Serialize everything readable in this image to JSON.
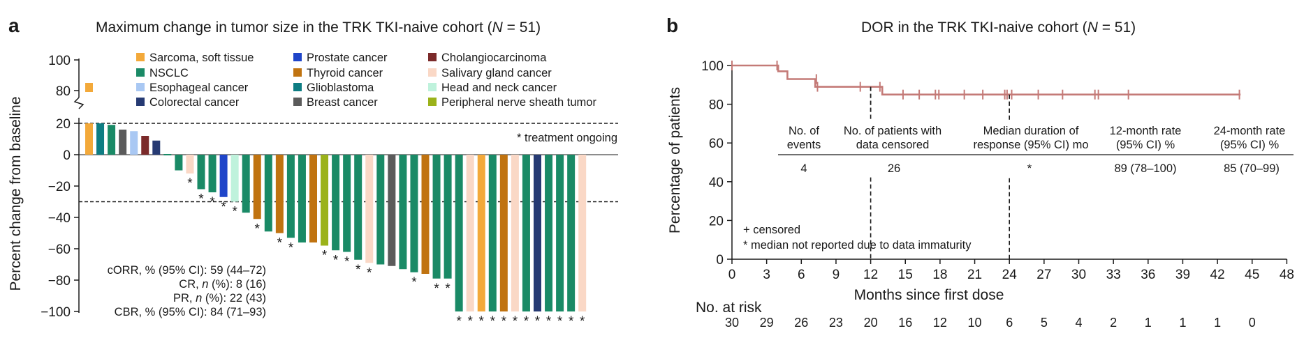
{
  "colors": {
    "sarcoma": "#f3a93a",
    "nsclc": "#1a8a66",
    "esophageal": "#a9c8f3",
    "colorectal": "#263a73",
    "prostate": "#1f45c9",
    "thyroid": "#c07310",
    "glioblastoma": "#0e7d83",
    "breast": "#5b5b5b",
    "cholangio": "#7b2a2a",
    "salivary": "#fad8c6",
    "headneck": "#bff2dc",
    "pnst": "#9bb21a",
    "km_line": "#c47a77"
  },
  "panel_a": {
    "letter": "a",
    "title_pre": "Maximum change in tumor size in the TRK TKI-naive cohort (",
    "title_n": "N",
    "title_post": " = 51)",
    "treatment_note": "* treatment ongoing",
    "star_symbol": "*",
    "stats": [
      {
        "pre": "cORR, % (95% CI): 59 (44–72)",
        "italic": "",
        "post": ""
      },
      {
        "pre": "CR, ",
        "italic": "n",
        "post": " (%): 8 (16)"
      },
      {
        "pre": "PR, ",
        "italic": "n",
        "post": " (%): 22 (43)"
      },
      {
        "pre": "CBR, % (95% CI): 84 (71–93)",
        "italic": "",
        "post": ""
      }
    ]
  },
  "panel_b": {
    "letter": "b",
    "title_pre": "DOR in the TRK TKI-naive cohort (",
    "title_n": "N",
    "title_post": " = 51)",
    "table_headers": [
      [
        "No. of",
        "events"
      ],
      [
        "No. of patients with",
        "data censored"
      ],
      [
        "Median duration of",
        "response (95% CI) mo"
      ],
      [
        "12-month rate",
        "(95% CI) %"
      ],
      [
        "24-month rate",
        "(95% CI) %"
      ]
    ],
    "table_values": [
      "4",
      "26",
      "*",
      "89 (78–100)",
      "85 (70–99)"
    ],
    "footnotes": [
      "+ censored",
      "* median not reported due to data immaturity"
    ],
    "risk_label": "No. at risk",
    "risk_values": [
      "30",
      "29",
      "26",
      "23",
      "20",
      "16",
      "12",
      "10",
      "6",
      "5",
      "4",
      "2",
      "1",
      "1",
      "1",
      "0"
    ]
  },
  "chart_data": [
    {
      "type": "bar",
      "title": "Maximum change in tumor size in the TRK TKI-naive cohort (N = 51)",
      "xlabel": "",
      "ylabel": "Percent change from baseline",
      "ylim": [
        -100,
        100
      ],
      "yticks": [
        "-100",
        "-80",
        "-60",
        "-40",
        "-20",
        "0",
        "20",
        "80",
        "100"
      ],
      "axis_break": "between 20 and 80",
      "reference_lines": [
        20,
        -30
      ],
      "legend": [
        {
          "label": "Sarcoma, soft tissue",
          "key": "sarcoma"
        },
        {
          "label": "NSCLC",
          "key": "nsclc"
        },
        {
          "label": "Esophageal cancer",
          "key": "esophageal"
        },
        {
          "label": "Colorectal cancer",
          "key": "colorectal"
        },
        {
          "label": "Prostate cancer",
          "key": "prostate"
        },
        {
          "label": "Thyroid cancer",
          "key": "thyroid"
        },
        {
          "label": "Glioblastoma",
          "key": "glioblastoma"
        },
        {
          "label": "Breast cancer",
          "key": "breast"
        },
        {
          "label": "Cholangiocarcinoma",
          "key": "cholangio"
        },
        {
          "label": "Salivary gland cancer",
          "key": "salivary"
        },
        {
          "label": "Head and neck cancer",
          "key": "headneck"
        },
        {
          "label": "Peripheral nerve sheath tumor",
          "key": "pnst"
        }
      ],
      "bars": [
        {
          "value": 85,
          "type": "sarcoma",
          "ongoing": false,
          "broken": true
        },
        {
          "value": 20,
          "type": "sarcoma",
          "ongoing": false
        },
        {
          "value": 20,
          "type": "glioblastoma",
          "ongoing": false
        },
        {
          "value": 19,
          "type": "nsclc",
          "ongoing": false
        },
        {
          "value": 16,
          "type": "breast",
          "ongoing": false
        },
        {
          "value": 15,
          "type": "esophageal",
          "ongoing": false
        },
        {
          "value": 12,
          "type": "cholangio",
          "ongoing": false
        },
        {
          "value": 9,
          "type": "colorectal",
          "ongoing": false
        },
        {
          "value": 0,
          "type": "nsclc",
          "ongoing": false
        },
        {
          "value": -10,
          "type": "nsclc",
          "ongoing": false
        },
        {
          "value": -12,
          "type": "salivary",
          "ongoing": true
        },
        {
          "value": -22,
          "type": "nsclc",
          "ongoing": true
        },
        {
          "value": -24,
          "type": "nsclc",
          "ongoing": true
        },
        {
          "value": -27,
          "type": "prostate",
          "ongoing": true
        },
        {
          "value": -30,
          "type": "headneck",
          "ongoing": true
        },
        {
          "value": -37,
          "type": "nsclc",
          "ongoing": false
        },
        {
          "value": -41,
          "type": "thyroid",
          "ongoing": true
        },
        {
          "value": -49,
          "type": "nsclc",
          "ongoing": false
        },
        {
          "value": -50,
          "type": "thyroid",
          "ongoing": true
        },
        {
          "value": -53,
          "type": "nsclc",
          "ongoing": true
        },
        {
          "value": -56,
          "type": "nsclc",
          "ongoing": false
        },
        {
          "value": -56,
          "type": "thyroid",
          "ongoing": false
        },
        {
          "value": -58,
          "type": "pnst",
          "ongoing": true
        },
        {
          "value": -61,
          "type": "nsclc",
          "ongoing": true
        },
        {
          "value": -62,
          "type": "nsclc",
          "ongoing": true
        },
        {
          "value": -67,
          "type": "nsclc",
          "ongoing": true
        },
        {
          "value": -69,
          "type": "salivary",
          "ongoing": true
        },
        {
          "value": -70,
          "type": "nsclc",
          "ongoing": false
        },
        {
          "value": -71,
          "type": "breast",
          "ongoing": false
        },
        {
          "value": -73,
          "type": "nsclc",
          "ongoing": false
        },
        {
          "value": -75,
          "type": "nsclc",
          "ongoing": true
        },
        {
          "value": -76,
          "type": "thyroid",
          "ongoing": false
        },
        {
          "value": -79,
          "type": "nsclc",
          "ongoing": true
        },
        {
          "value": -79,
          "type": "nsclc",
          "ongoing": true
        },
        {
          "value": -100,
          "type": "nsclc",
          "ongoing": true
        },
        {
          "value": -100,
          "type": "salivary",
          "ongoing": true
        },
        {
          "value": -100,
          "type": "sarcoma",
          "ongoing": true
        },
        {
          "value": -100,
          "type": "nsclc",
          "ongoing": true
        },
        {
          "value": -100,
          "type": "thyroid",
          "ongoing": true
        },
        {
          "value": -100,
          "type": "salivary",
          "ongoing": true
        },
        {
          "value": -100,
          "type": "nsclc",
          "ongoing": true
        },
        {
          "value": -100,
          "type": "colorectal",
          "ongoing": true
        },
        {
          "value": -100,
          "type": "nsclc",
          "ongoing": true
        },
        {
          "value": -100,
          "type": "nsclc",
          "ongoing": true
        },
        {
          "value": -100,
          "type": "nsclc",
          "ongoing": true
        },
        {
          "value": -100,
          "type": "salivary",
          "ongoing": true
        }
      ]
    },
    {
      "type": "line",
      "subtype": "kaplan-meier",
      "title": "DOR in the TRK TKI-naive cohort (N = 51)",
      "xlabel": "Months since first dose",
      "ylabel": "Percentage of patients",
      "xlim": [
        0,
        48
      ],
      "ylim": [
        0,
        100
      ],
      "xticks": [
        "0",
        "3",
        "6",
        "9",
        "12",
        "15",
        "18",
        "21",
        "24",
        "27",
        "30",
        "33",
        "36",
        "39",
        "42",
        "45",
        "48"
      ],
      "yticks": [
        "0",
        "20",
        "40",
        "60",
        "80",
        "100"
      ],
      "steps": [
        {
          "x": 0,
          "y": 100
        },
        {
          "x": 4,
          "y": 100
        },
        {
          "x": 4,
          "y": 97
        },
        {
          "x": 4.8,
          "y": 97
        },
        {
          "x": 4.8,
          "y": 93
        },
        {
          "x": 7.2,
          "y": 93
        },
        {
          "x": 7.2,
          "y": 89
        },
        {
          "x": 13,
          "y": 89
        },
        {
          "x": 13,
          "y": 85
        },
        {
          "x": 44,
          "y": 85
        }
      ],
      "censored": [
        {
          "x": 0,
          "y": 100
        },
        {
          "x": 3.9,
          "y": 100
        },
        {
          "x": 7.3,
          "y": 93
        },
        {
          "x": 7.4,
          "y": 89
        },
        {
          "x": 11.1,
          "y": 89
        },
        {
          "x": 12.8,
          "y": 89
        },
        {
          "x": 14.8,
          "y": 85
        },
        {
          "x": 16.2,
          "y": 85
        },
        {
          "x": 17.6,
          "y": 85
        },
        {
          "x": 17.9,
          "y": 85
        },
        {
          "x": 20.1,
          "y": 85
        },
        {
          "x": 21.7,
          "y": 85
        },
        {
          "x": 23.6,
          "y": 85
        },
        {
          "x": 23.8,
          "y": 85
        },
        {
          "x": 24.2,
          "y": 85
        },
        {
          "x": 26.5,
          "y": 85
        },
        {
          "x": 28.6,
          "y": 85
        },
        {
          "x": 31.4,
          "y": 85
        },
        {
          "x": 31.7,
          "y": 85
        },
        {
          "x": 34.3,
          "y": 85
        },
        {
          "x": 43.9,
          "y": 85
        }
      ],
      "medians": [
        {
          "label": "12-month",
          "x": 12,
          "y": 89
        },
        {
          "label": "24-month",
          "x": 24,
          "y": 85
        }
      ]
    }
  ]
}
